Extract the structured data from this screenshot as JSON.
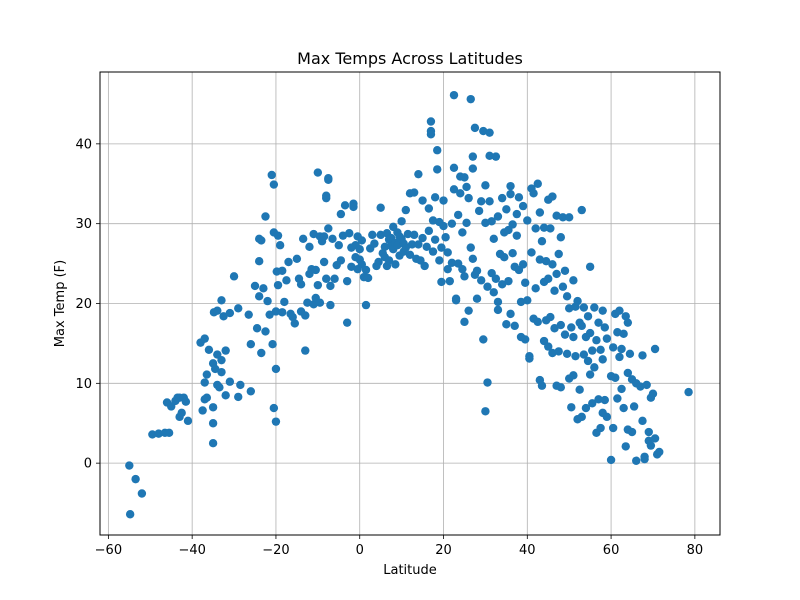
{
  "chart_data": {
    "type": "scatter",
    "title": "Max Temps Across Latitudes",
    "xlabel": "Latitude",
    "ylabel": "Max Temp (F)",
    "xlim": [
      -62,
      86
    ],
    "ylim": [
      -9,
      49
    ],
    "xticks": [
      -60,
      -40,
      -20,
      0,
      20,
      40,
      60,
      80
    ],
    "yticks": [
      0,
      10,
      20,
      30,
      40
    ],
    "grid": true,
    "marker_color": "#1f77b4",
    "points": [
      [
        -55,
        -0.3
      ],
      [
        -54.8,
        -6.4
      ],
      [
        -53.5,
        -2
      ],
      [
        -52,
        -3.8
      ],
      [
        -49.5,
        3.6
      ],
      [
        -48,
        3.7
      ],
      [
        -46.5,
        3.8
      ],
      [
        -46,
        7.6
      ],
      [
        -45.5,
        3.8
      ],
      [
        -45,
        7.1
      ],
      [
        -44,
        7.8
      ],
      [
        -43.5,
        8.2
      ],
      [
        -43,
        8.2
      ],
      [
        -43,
        5.8
      ],
      [
        -42.5,
        6.3
      ],
      [
        -42,
        8.2
      ],
      [
        -41.5,
        7.7
      ],
      [
        -41,
        5.3
      ],
      [
        -38,
        15.1
      ],
      [
        -37.5,
        6.6
      ],
      [
        -37,
        15.6
      ],
      [
        -37,
        10.1
      ],
      [
        -36.5,
        11.1
      ],
      [
        -36.5,
        8.2
      ],
      [
        -37,
        8.0
      ],
      [
        -36,
        14.2
      ],
      [
        -35,
        12.5
      ],
      [
        -34.8,
        18.9
      ],
      [
        -34.5,
        11.8
      ],
      [
        -34,
        13.6
      ],
      [
        -34,
        19.1
      ],
      [
        -33.5,
        9.5
      ],
      [
        -33,
        20.4
      ],
      [
        -33,
        12.9
      ],
      [
        -33,
        11.4
      ],
      [
        -32.5,
        18.4
      ],
      [
        -32,
        14.1
      ],
      [
        -35,
        7.0
      ],
      [
        -35,
        5.0
      ],
      [
        -35,
        2.5
      ],
      [
        -34,
        9.8
      ],
      [
        -32,
        8.5
      ],
      [
        -31,
        18.8
      ],
      [
        -31,
        10.2
      ],
      [
        -30,
        23.4
      ],
      [
        -29,
        19.4
      ],
      [
        -29,
        8.3
      ],
      [
        -28.5,
        9.8
      ],
      [
        -26.5,
        18.6
      ],
      [
        -26,
        14.9
      ],
      [
        -26,
        9.0
      ],
      [
        -25,
        22.2
      ],
      [
        -24.5,
        16.9
      ],
      [
        -24,
        28.1
      ],
      [
        -24,
        20.9
      ],
      [
        -24,
        25.3
      ],
      [
        -23.5,
        27.9
      ],
      [
        -23.5,
        13.8
      ],
      [
        -23,
        21.9
      ],
      [
        -22.5,
        30.9
      ],
      [
        -22.5,
        16.5
      ],
      [
        -22,
        20.3
      ],
      [
        -21.5,
        18.6
      ],
      [
        -21,
        36.1
      ],
      [
        -20.8,
        14.9
      ],
      [
        -20.5,
        34.9
      ],
      [
        -20.5,
        28.9
      ],
      [
        -20.5,
        6.9
      ],
      [
        -20,
        5.2
      ],
      [
        -20,
        11.8
      ],
      [
        -20,
        19.0
      ],
      [
        -19.8,
        24.0
      ],
      [
        -19.5,
        22.3
      ],
      [
        -19.5,
        28.5
      ],
      [
        -19,
        27.3
      ],
      [
        -18.5,
        18.9
      ],
      [
        -18.5,
        24.1
      ],
      [
        -18,
        20.2
      ],
      [
        -17.5,
        22.9
      ],
      [
        -17,
        25.2
      ],
      [
        -16.5,
        18.7
      ],
      [
        -16,
        18.3
      ],
      [
        -15.5,
        17.5
      ],
      [
        -15,
        25.6
      ],
      [
        -14.5,
        23.1
      ],
      [
        -14,
        19.0
      ],
      [
        -14,
        22.4
      ],
      [
        -13.5,
        28.1
      ],
      [
        -13,
        18.5
      ],
      [
        -13,
        14.1
      ],
      [
        -12.5,
        20.1
      ],
      [
        -12,
        23.7
      ],
      [
        -12,
        27.1
      ],
      [
        -11.5,
        24.3
      ],
      [
        -11,
        19.9
      ],
      [
        -11,
        28.7
      ],
      [
        -10.5,
        20.7
      ],
      [
        -10.5,
        24.2
      ],
      [
        -10,
        36.4
      ],
      [
        -10,
        22.3
      ],
      [
        -9.5,
        20.1
      ],
      [
        -9.5,
        28.4
      ],
      [
        -9,
        27.8
      ],
      [
        -8.5,
        28.4
      ],
      [
        -8.5,
        25.2
      ],
      [
        -8,
        23.1
      ],
      [
        -8,
        33.2
      ],
      [
        -8,
        33.5
      ],
      [
        -7.5,
        35.5
      ],
      [
        -7.5,
        35.7
      ],
      [
        -7.5,
        29.4
      ],
      [
        -7,
        19.8
      ],
      [
        -7,
        22.2
      ],
      [
        -6.5,
        28.1
      ],
      [
        -6,
        23.1
      ],
      [
        -5.5,
        24.8
      ],
      [
        -5,
        27.3
      ],
      [
        -4.5,
        25.4
      ],
      [
        -4.5,
        31.2
      ],
      [
        -4,
        28.5
      ],
      [
        -3.5,
        32.3
      ],
      [
        -3,
        17.6
      ],
      [
        -3,
        22.8
      ],
      [
        -2.5,
        28.8
      ],
      [
        -2,
        27.0
      ],
      [
        -2,
        24.6
      ],
      [
        -1.5,
        32.5
      ],
      [
        -1.5,
        32.1
      ],
      [
        -1,
        25.8
      ],
      [
        -1,
        27.3
      ],
      [
        -0.5,
        24.3
      ],
      [
        -0.5,
        28.4
      ],
      [
        0,
        25.5
      ],
      [
        0,
        26.8
      ],
      [
        0.5,
        24.9
      ],
      [
        0.5,
        27.9
      ],
      [
        1,
        23.3
      ],
      [
        1.5,
        24.2
      ],
      [
        1.5,
        19.8
      ],
      [
        2,
        23.2
      ],
      [
        2.5,
        26.9
      ],
      [
        3,
        28.6
      ],
      [
        3.5,
        27.5
      ],
      [
        4,
        24.7
      ],
      [
        4.5,
        25.2
      ],
      [
        5,
        32.0
      ],
      [
        5,
        28.6
      ],
      [
        5.5,
        26.3
      ],
      [
        6,
        27.1
      ],
      [
        6,
        25.8
      ],
      [
        6.5,
        28.8
      ],
      [
        6.5,
        24.7
      ],
      [
        7,
        28.0
      ],
      [
        7,
        25.4
      ],
      [
        7.5,
        27.2
      ],
      [
        7.5,
        28.2
      ],
      [
        8,
        26.8
      ],
      [
        8,
        29.6
      ],
      [
        8.5,
        27.6
      ],
      [
        8.5,
        24.9
      ],
      [
        9,
        28.9
      ],
      [
        9,
        27.3
      ],
      [
        9.5,
        28.4
      ],
      [
        9.5,
        26.0
      ],
      [
        10,
        30.3
      ],
      [
        10,
        28.1
      ],
      [
        10.5,
        27.5
      ],
      [
        10.5,
        26.5
      ],
      [
        11,
        31.7
      ],
      [
        11,
        27.0
      ],
      [
        11.5,
        28.7
      ],
      [
        12,
        33.8
      ],
      [
        12,
        26.1
      ],
      [
        12.5,
        27.4
      ],
      [
        13,
        33.9
      ],
      [
        13,
        28.6
      ],
      [
        13.5,
        25.6
      ],
      [
        14,
        36.2
      ],
      [
        14,
        27.4
      ],
      [
        14.5,
        25.4
      ],
      [
        15,
        28.2
      ],
      [
        15,
        32.9
      ],
      [
        15.5,
        24.7
      ],
      [
        16,
        27.1
      ],
      [
        16.5,
        31.9
      ],
      [
        16.5,
        29.1
      ],
      [
        17,
        41.6
      ],
      [
        17,
        41.2
      ],
      [
        17,
        42.8
      ],
      [
        17.5,
        30.4
      ],
      [
        17.5,
        26.5
      ],
      [
        18,
        33.3
      ],
      [
        18,
        28.0
      ],
      [
        18.5,
        39.2
      ],
      [
        18.5,
        36.8
      ],
      [
        19,
        30.2
      ],
      [
        19,
        25.4
      ],
      [
        19.5,
        22.7
      ],
      [
        19.5,
        27.0
      ],
      [
        20,
        32.9
      ],
      [
        20,
        29.7
      ],
      [
        20.5,
        28.3
      ],
      [
        21,
        26.4
      ],
      [
        21,
        24.3
      ],
      [
        21.5,
        22.8
      ],
      [
        22,
        30.0
      ],
      [
        22,
        25.1
      ],
      [
        22.5,
        46.1
      ],
      [
        22.5,
        34.3
      ],
      [
        22.5,
        37.0
      ],
      [
        23,
        20.6
      ],
      [
        23,
        20.4
      ],
      [
        23.5,
        25.0
      ],
      [
        23.5,
        31.1
      ],
      [
        24,
        35.9
      ],
      [
        24,
        33.8
      ],
      [
        24.5,
        28.9
      ],
      [
        24.5,
        24.3
      ],
      [
        25,
        35.8
      ],
      [
        25,
        23.4
      ],
      [
        25,
        17.7
      ],
      [
        25.5,
        34.6
      ],
      [
        25.5,
        30.1
      ],
      [
        26,
        33.2
      ],
      [
        26,
        19.1
      ],
      [
        26.5,
        27.0
      ],
      [
        26.5,
        45.6
      ],
      [
        27,
        38.4
      ],
      [
        27,
        36.9
      ],
      [
        27,
        25.6
      ],
      [
        27.5,
        42.0
      ],
      [
        27.5,
        23.6
      ],
      [
        28,
        24.1
      ],
      [
        28,
        20.6
      ],
      [
        28.5,
        31.6
      ],
      [
        29,
        32.8
      ],
      [
        29,
        22.9
      ],
      [
        29.5,
        15.5
      ],
      [
        29.5,
        41.6
      ],
      [
        30,
        34.8
      ],
      [
        30,
        30.1
      ],
      [
        30,
        6.5
      ],
      [
        30.5,
        10.1
      ],
      [
        30.5,
        22.1
      ],
      [
        31,
        41.4
      ],
      [
        31,
        38.5
      ],
      [
        31,
        32.8
      ],
      [
        31.5,
        30.3
      ],
      [
        31.5,
        23.8
      ],
      [
        32,
        21.4
      ],
      [
        32,
        28.1
      ],
      [
        32.5,
        38.4
      ],
      [
        32.5,
        23.1
      ],
      [
        33,
        30.9
      ],
      [
        33,
        20.2
      ],
      [
        33,
        19.2
      ],
      [
        33.5,
        26.2
      ],
      [
        34,
        22.4
      ],
      [
        34,
        33.2
      ],
      [
        34.5,
        28.9
      ],
      [
        34.5,
        25.8
      ],
      [
        35,
        31.8
      ],
      [
        35,
        17.4
      ],
      [
        35.5,
        29.2
      ],
      [
        35.5,
        22.8
      ],
      [
        36,
        33.7
      ],
      [
        36,
        34.7
      ],
      [
        36,
        18.7
      ],
      [
        36.5,
        29.9
      ],
      [
        36.5,
        26.3
      ],
      [
        37,
        24.6
      ],
      [
        37,
        17.2
      ],
      [
        37.5,
        31.2
      ],
      [
        37.5,
        28.5
      ],
      [
        38,
        33.3
      ],
      [
        38,
        24.2
      ],
      [
        38.5,
        20.2
      ],
      [
        38.5,
        15.8
      ],
      [
        39,
        32.2
      ],
      [
        39,
        24.9
      ],
      [
        39.5,
        15.5
      ],
      [
        39.5,
        22.6
      ],
      [
        40,
        30.4
      ],
      [
        40,
        20.4
      ],
      [
        40.5,
        13.4
      ],
      [
        40.5,
        13.1
      ],
      [
        41,
        34.4
      ],
      [
        41,
        26.4
      ],
      [
        41.5,
        33.8
      ],
      [
        41.5,
        18.1
      ],
      [
        42,
        29.4
      ],
      [
        42,
        21.9
      ],
      [
        42.5,
        35.0
      ],
      [
        42.5,
        17.7
      ],
      [
        43,
        31.4
      ],
      [
        43,
        25.5
      ],
      [
        43,
        10.4
      ],
      [
        43.5,
        27.8
      ],
      [
        43.5,
        9.7
      ],
      [
        44,
        29.5
      ],
      [
        44,
        22.7
      ],
      [
        44,
        15.3
      ],
      [
        44.5,
        25.3
      ],
      [
        44.5,
        17.9
      ],
      [
        45,
        33.0
      ],
      [
        45,
        23.1
      ],
      [
        45,
        14.6
      ],
      [
        45.5,
        29.4
      ],
      [
        45.5,
        18.3
      ],
      [
        46,
        33.4
      ],
      [
        46,
        24.9
      ],
      [
        46,
        13.8
      ],
      [
        46.5,
        21.6
      ],
      [
        46.5,
        16.9
      ],
      [
        47,
        31.0
      ],
      [
        47,
        23.7
      ],
      [
        47,
        9.7
      ],
      [
        47.5,
        26.2
      ],
      [
        47.5,
        14.0
      ],
      [
        48,
        28.3
      ],
      [
        48,
        17.3
      ],
      [
        48,
        9.5
      ],
      [
        48.5,
        30.8
      ],
      [
        48.5,
        22.1
      ],
      [
        49,
        24.1
      ],
      [
        49,
        16.1
      ],
      [
        49.5,
        20.9
      ],
      [
        49.5,
        13.7
      ],
      [
        50,
        30.8
      ],
      [
        50,
        19.4
      ],
      [
        50,
        10.6
      ],
      [
        50.5,
        17.0
      ],
      [
        50.5,
        7.0
      ],
      [
        51,
        22.9
      ],
      [
        51,
        15.8
      ],
      [
        51,
        11.0
      ],
      [
        51.5,
        19.6
      ],
      [
        51.5,
        13.4
      ],
      [
        52,
        20.3
      ],
      [
        52,
        5.5
      ],
      [
        52.5,
        17.6
      ],
      [
        52.5,
        9.2
      ],
      [
        53,
        31.7
      ],
      [
        53,
        17.2
      ],
      [
        53,
        5.8
      ],
      [
        53.5,
        19.5
      ],
      [
        53.5,
        13.6
      ],
      [
        54,
        15.8
      ],
      [
        54,
        6.9
      ],
      [
        54.5,
        18.4
      ],
      [
        54.5,
        12.8
      ],
      [
        55,
        24.6
      ],
      [
        55,
        16.3
      ],
      [
        55,
        11.1
      ],
      [
        55.5,
        14.1
      ],
      [
        55.5,
        7.5
      ],
      [
        56,
        19.5
      ],
      [
        56,
        12.0
      ],
      [
        56.5,
        15.4
      ],
      [
        56.5,
        3.8
      ],
      [
        57,
        17.6
      ],
      [
        57,
        8.0
      ],
      [
        57.5,
        14.2
      ],
      [
        57.5,
        4.4
      ],
      [
        58,
        19.1
      ],
      [
        58,
        13.0
      ],
      [
        58,
        6.3
      ],
      [
        58.5,
        17.0
      ],
      [
        58.5,
        7.9
      ],
      [
        59,
        15.6
      ],
      [
        59,
        5.8
      ],
      [
        60,
        10.9
      ],
      [
        60,
        0.4
      ],
      [
        60.5,
        14.5
      ],
      [
        60.5,
        4.4
      ],
      [
        61,
        18.7
      ],
      [
        61,
        10.7
      ],
      [
        61.5,
        16.4
      ],
      [
        61.5,
        8.1
      ],
      [
        62,
        19.1
      ],
      [
        62,
        13.3
      ],
      [
        62.5,
        14.3
      ],
      [
        62.5,
        9.3
      ],
      [
        63,
        16.2
      ],
      [
        63,
        6.9
      ],
      [
        63.5,
        18.4
      ],
      [
        63.5,
        2.1
      ],
      [
        64,
        17.6
      ],
      [
        64,
        11.3
      ],
      [
        64,
        4.2
      ],
      [
        64.5,
        13.7
      ],
      [
        65,
        10.5
      ],
      [
        65,
        3.9
      ],
      [
        65.5,
        7.1
      ],
      [
        66,
        0.3
      ],
      [
        66,
        10.0
      ],
      [
        67,
        9.6
      ],
      [
        67.5,
        13.5
      ],
      [
        67.5,
        5.3
      ],
      [
        68,
        0.8
      ],
      [
        68,
        0.5
      ],
      [
        68.5,
        9.8
      ],
      [
        69,
        3.9
      ],
      [
        69,
        2.8
      ],
      [
        69.5,
        8.2
      ],
      [
        69.5,
        2.2
      ],
      [
        70,
        8.7
      ],
      [
        70.5,
        14.3
      ],
      [
        70.5,
        3.1
      ],
      [
        71,
        1.1
      ],
      [
        71.5,
        1.4
      ],
      [
        78.5,
        8.9
      ]
    ]
  }
}
